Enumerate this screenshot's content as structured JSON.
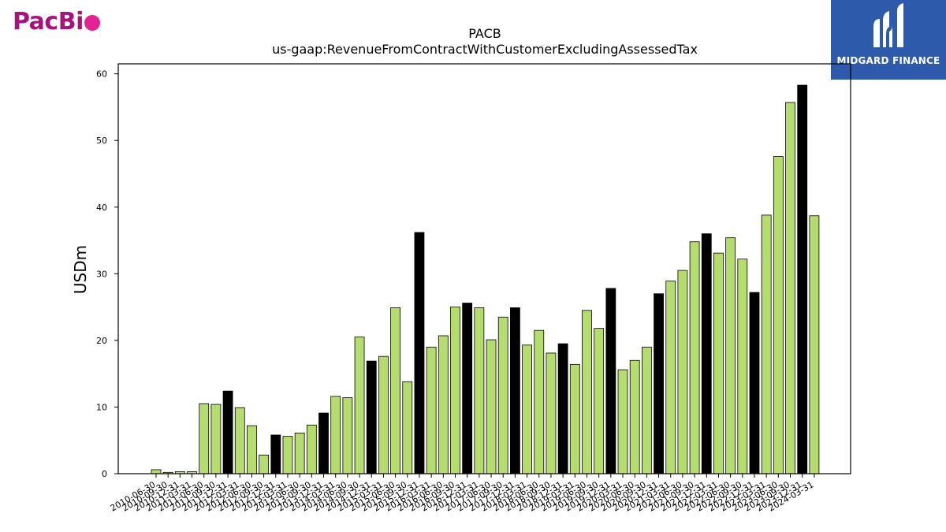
{
  "brand": {
    "name_prefix": "PacBi",
    "brand_color": "#a8127a",
    "dot_color": "#e3238f"
  },
  "watermark": {
    "text": "MIDGARD FINANCE",
    "bg_color": "#2d5aab"
  },
  "chart_data": {
    "type": "bar",
    "title": "PACB",
    "subtitle": "us-gaap:RevenueFromContractWithCustomerExcludingAssessedTax",
    "xlabel": "",
    "ylabel": "USDm",
    "ylim": [
      0,
      61.5
    ],
    "yticks": [
      0,
      10,
      20,
      30,
      40,
      50,
      60
    ],
    "grid": false,
    "colors": {
      "quarter": "#b5dc6f",
      "fiscal_q4": "#000000",
      "edge": "#000000"
    },
    "categories": [
      "2010-06-30",
      "2010-09-30",
      "2010-12-31",
      "2011-03-31",
      "2011-06-30",
      "2011-09-30",
      "2011-12-31",
      "2012-03-31",
      "2012-06-30",
      "2012-09-30",
      "2012-12-31",
      "2013-03-31",
      "2013-06-30",
      "2013-09-30",
      "2013-12-31",
      "2014-03-31",
      "2014-06-30",
      "2014-09-30",
      "2014-12-31",
      "2015-03-31",
      "2015-06-30",
      "2015-09-30",
      "2015-12-31",
      "2016-03-31",
      "2016-06-30",
      "2016-09-30",
      "2016-12-31",
      "2017-03-31",
      "2017-06-30",
      "2017-09-30",
      "2017-12-31",
      "2018-03-31",
      "2018-06-30",
      "2018-09-30",
      "2018-12-31",
      "2019-03-31",
      "2019-06-30",
      "2019-09-30",
      "2019-12-31",
      "2020-03-31",
      "2020-06-30",
      "2020-09-30",
      "2020-12-31",
      "2021-03-31",
      "2021-06-30",
      "2021-09-30",
      "2021-12-31",
      "2022-03-31",
      "2022-06-30",
      "2022-09-30",
      "2022-12-31",
      "2023-03-31",
      "2023-06-30",
      "2023-09-30",
      "2023-12-31",
      "2024-03-31"
    ],
    "values": [
      0.6,
      0.2,
      0.3,
      0.3,
      10.5,
      10.4,
      12.4,
      9.9,
      7.2,
      2.8,
      5.8,
      5.6,
      6.1,
      7.3,
      9.1,
      11.6,
      11.4,
      20.5,
      16.9,
      17.6,
      24.9,
      13.8,
      36.2,
      19.0,
      20.7,
      25.0,
      25.6,
      24.9,
      20.1,
      23.5,
      24.9,
      19.3,
      21.5,
      18.1,
      19.5,
      16.4,
      24.5,
      21.8,
      27.8,
      15.6,
      17.0,
      19.0,
      27.0,
      28.9,
      30.5,
      34.8,
      36.0,
      33.1,
      35.4,
      32.2,
      27.2,
      38.8,
      47.6,
      55.7,
      58.3,
      38.7
    ],
    "highlight": [
      false,
      false,
      false,
      false,
      false,
      false,
      true,
      false,
      false,
      false,
      true,
      false,
      false,
      false,
      true,
      false,
      false,
      false,
      true,
      false,
      false,
      false,
      true,
      false,
      false,
      false,
      true,
      false,
      false,
      false,
      true,
      false,
      false,
      false,
      true,
      false,
      false,
      false,
      true,
      false,
      false,
      false,
      true,
      false,
      false,
      false,
      true,
      false,
      false,
      false,
      true,
      false,
      false,
      false,
      true,
      false
    ]
  }
}
